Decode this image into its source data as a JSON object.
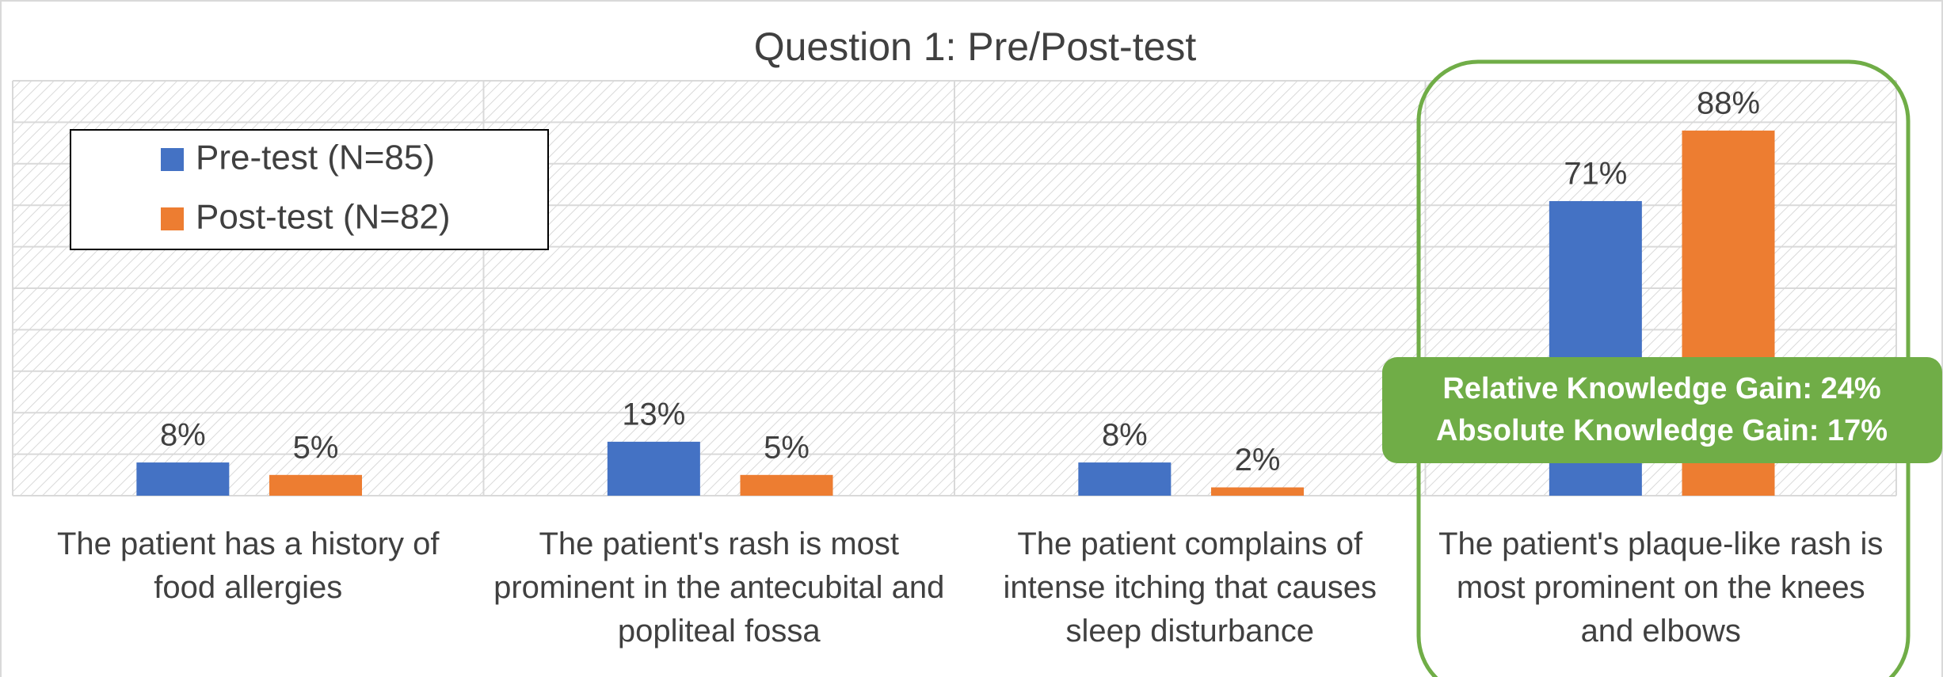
{
  "chart_data": {
    "type": "bar",
    "title": "Question 1: Pre/Post-test",
    "categories": [
      "The patient has a history of food allergies",
      "The patient's rash is most prominent in the antecubital and popliteal fossa",
      "The patient complains of intense itching that causes sleep disturbance",
      "The patient's plaque-like rash is most prominent on the knees and elbows"
    ],
    "series": [
      {
        "name": "Pre-test (N=85)",
        "color": "#4472c4",
        "values": [
          8,
          13,
          8,
          71
        ],
        "value_labels": [
          "8%",
          "13%",
          "8%",
          "71%"
        ]
      },
      {
        "name": "Post-test (N=82)",
        "color": "#ed7d31",
        "values": [
          5,
          5,
          2,
          88
        ],
        "value_labels": [
          "5%",
          "5%",
          "2%",
          "88%"
        ]
      }
    ],
    "ylim": [
      0,
      100
    ],
    "yticks": [
      0,
      10,
      20,
      30,
      40,
      50,
      60,
      70,
      80,
      90,
      100
    ],
    "grid": true,
    "legend": "upper left",
    "annotations": [
      "Relative Knowledge Gain: 24%",
      "Absolute Knowledge Gain: 17%"
    ],
    "highlight_color": "#70ad47"
  }
}
